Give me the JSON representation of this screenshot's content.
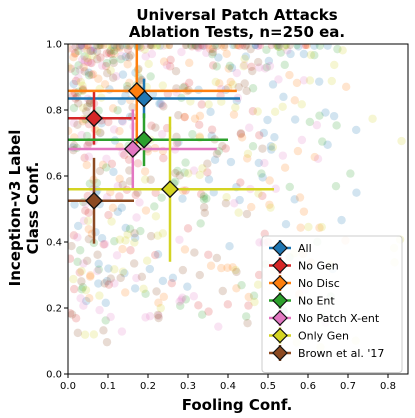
{
  "chart_data": {
    "type": "scatter",
    "title": "Universal Patch Attacks",
    "subtitle": "Ablation Tests, n=250 ea.",
    "xlabel": "Fooling Conf.",
    "ylabel_line1": "Inception-v3 Label",
    "ylabel_line2": "Class Conf.",
    "xlim": [
      0.0,
      0.85
    ],
    "ylim": [
      0.0,
      1.0
    ],
    "xticks": [
      "0.0",
      "0.1",
      "0.2",
      "0.3",
      "0.4",
      "0.5",
      "0.6",
      "0.7",
      "0.8"
    ],
    "yticks": [
      "0.0",
      "0.2",
      "0.4",
      "0.6",
      "0.8",
      "1.0"
    ],
    "grid": false,
    "legend_position": "lower-right",
    "series": [
      {
        "name": "All",
        "color": "#1f77b4",
        "mean": [
          0.19,
          0.835
        ],
        "xerr": 0.24,
        "yerr": 0.06
      },
      {
        "name": "No Gen",
        "color": "#d62728",
        "mean": [
          0.065,
          0.775
        ],
        "xerr": 0.11,
        "yerr": 0.08
      },
      {
        "name": "No Disc",
        "color": "#ff7f0e",
        "mean": [
          0.172,
          0.858
        ],
        "xerr": 0.25,
        "yerr": 0.16
      },
      {
        "name": "No Ent",
        "color": "#2ca02c",
        "mean": [
          0.19,
          0.71
        ],
        "xerr": 0.21,
        "yerr": 0.08
      },
      {
        "name": "No Patch X-ent",
        "color": "#e377c2",
        "mean": [
          0.162,
          0.682
        ],
        "xerr": 0.21,
        "yerr": 0.12
      },
      {
        "name": "Only Gen",
        "color": "#d4d422",
        "mean": [
          0.255,
          0.56
        ],
        "xerr": 0.26,
        "yerr": 0.22
      },
      {
        "name": "Brown et al. '17",
        "color": "#8c4a22",
        "mean": [
          0.065,
          0.525
        ],
        "xerr": 0.1,
        "yerr": 0.13
      }
    ]
  }
}
